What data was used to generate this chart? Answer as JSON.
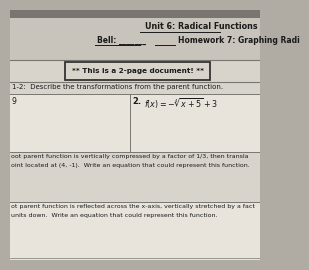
{
  "title_right": "Unit 6: Radical Functions",
  "bell_label": "Bell: _______",
  "homework_label": "Homework 7: Graphing Radi",
  "notice": "** This is a 2-page document! **",
  "section_label": "1-2:  Describe the transformations from the parent function.",
  "problem2_label": "2.",
  "body_text1": "oot parent function is vertically compressed by a factor of 1/3, then transla",
  "body_text1b": "oint located at (4, -1).  Write an equation that could represent this function.",
  "body_text2": "ot parent function is reflected across the x-axis, vertically stretched by a fact",
  "body_text2b": "units down.  Write an equation that could represent this function.",
  "bg_top_color": "#b0aba3",
  "paper_color": "#d8d4cc",
  "inner_paper_color": "#e8e4dc",
  "text_color": "#1a1a1a",
  "line_color": "#888880",
  "box_edge_color": "#333333"
}
